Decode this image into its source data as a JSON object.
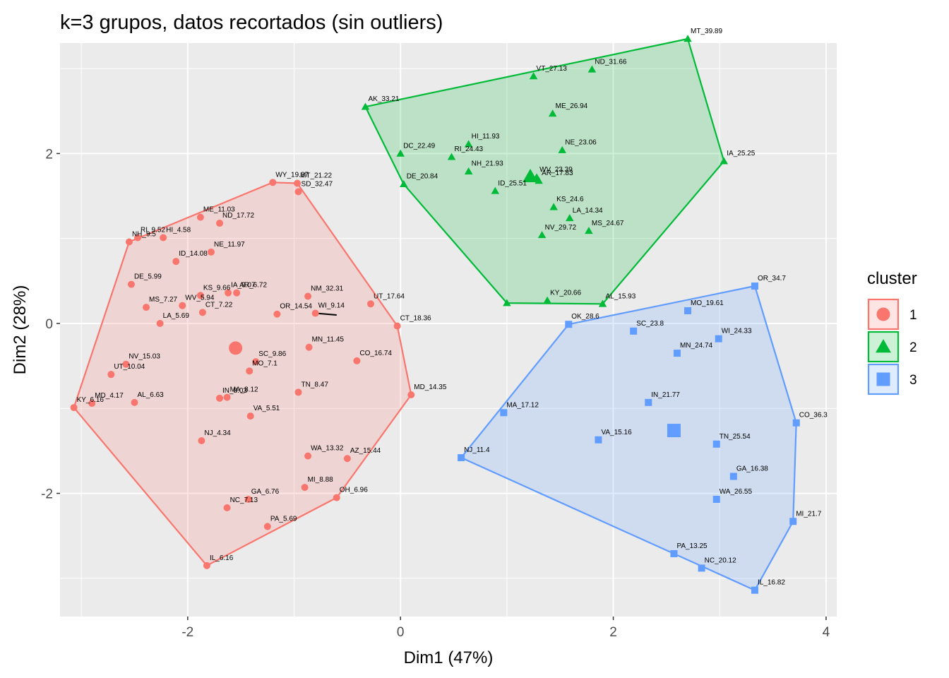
{
  "chart_data": {
    "type": "scatter",
    "title": "k=3 grupos, datos recortados (sin outliers)",
    "xlabel": "Dim1 (47%)",
    "ylabel": "Dim2 (28%)",
    "xlim": [
      -3.2,
      4.1
    ],
    "ylim": [
      -3.45,
      3.3
    ],
    "x_ticks": [
      -2,
      0,
      2,
      4
    ],
    "y_ticks": [
      -2,
      0,
      2
    ],
    "x_tick_labels": [
      "-2",
      "0",
      "2",
      "4"
    ],
    "y_tick_labels": [
      "-2",
      "0",
      "2"
    ],
    "grid": true,
    "legend_placement": "right",
    "legend": {
      "title": "cluster",
      "entries": [
        {
          "label": "1",
          "shape": "circle",
          "color": "#F8766D"
        },
        {
          "label": "2",
          "shape": "triangle",
          "color": "#00BA38"
        },
        {
          "label": "3",
          "shape": "square",
          "color": "#619CFF"
        }
      ]
    },
    "hulls": {
      "1": [
        [
          -3.07,
          -0.99
        ],
        [
          -2.55,
          0.96
        ],
        [
          -1.2,
          1.66
        ],
        [
          -0.97,
          1.65
        ],
        [
          -0.03,
          -0.03
        ],
        [
          0.1,
          -0.84
        ],
        [
          -0.6,
          -2.05
        ],
        [
          -1.82,
          -2.85
        ]
      ],
      "2": [
        [
          -0.33,
          2.55
        ],
        [
          2.7,
          3.35
        ],
        [
          3.04,
          1.91
        ],
        [
          1.9,
          0.23
        ],
        [
          1.0,
          0.24
        ],
        [
          0.03,
          1.64
        ]
      ],
      "3": [
        [
          0.57,
          -1.58
        ],
        [
          1.58,
          -0.01
        ],
        [
          3.33,
          0.44
        ],
        [
          3.72,
          -1.17
        ],
        [
          3.69,
          -2.33
        ],
        [
          3.33,
          -3.14
        ],
        [
          2.57,
          -2.71
        ]
      ]
    },
    "series": [
      {
        "name": "1",
        "color": "#F8766D",
        "points": [
          {
            "label": "WY_19.37",
            "x": -1.2,
            "y": 1.66
          },
          {
            "label": "MT_21.22",
            "x": -0.97,
            "y": 1.65
          },
          {
            "label": "SD_32.47",
            "x": -0.96,
            "y": 1.55
          },
          {
            "label": "ME_11.03",
            "x": -1.88,
            "y": 1.25
          },
          {
            "label": "ND_17.72",
            "x": -1.7,
            "y": 1.18
          },
          {
            "label": "RI_9.52",
            "x": -2.47,
            "y": 1.01
          },
          {
            "label": "NH_9.5",
            "x": -2.55,
            "y": 0.96
          },
          {
            "label": "HI_4.58",
            "x": -2.23,
            "y": 1.01
          },
          {
            "label": "ID_14.08",
            "x": -2.11,
            "y": 0.73
          },
          {
            "label": "NE_11.97",
            "x": -1.78,
            "y": 0.84
          },
          {
            "label": "DE_5.99",
            "x": -2.53,
            "y": 0.46
          },
          {
            "label": "KS_9.66",
            "x": -1.88,
            "y": 0.33
          },
          {
            "label": "AR_6.72",
            "x": -1.54,
            "y": 0.36
          },
          {
            "label": "IA_9.07",
            "x": -1.62,
            "y": 0.36
          },
          {
            "label": "MS_7.27",
            "x": -2.39,
            "y": 0.19
          },
          {
            "label": "WV_5.94",
            "x": -2.05,
            "y": 0.21
          },
          {
            "label": "CT_7.22",
            "x": -1.86,
            "y": 0.13
          },
          {
            "label": "LA_5.69",
            "x": -2.26,
            "y": 0.0
          },
          {
            "label": "NM_32.31",
            "x": -0.87,
            "y": 0.32
          },
          {
            "label": "UT_17.64",
            "x": -0.28,
            "y": 0.23
          },
          {
            "label": "OR_14.54",
            "x": -1.16,
            "y": 0.11
          },
          {
            "label": "WI_9.14",
            "x": -0.8,
            "y": 0.12
          },
          {
            "label": "CT_18.36",
            "x": -0.03,
            "y": -0.03
          },
          {
            "label": "MN_11.45",
            "x": -0.86,
            "y": -0.28
          },
          {
            "label": "SC_9.86",
            "x": -1.36,
            "y": -0.45
          },
          {
            "label": "CO_16.74",
            "x": -0.41,
            "y": -0.44
          },
          {
            "label": "UT_10.04",
            "x": -2.72,
            "y": -0.6
          },
          {
            "label": "NV_15.03",
            "x": -2.58,
            "y": -0.48
          },
          {
            "label": "MO_7.1",
            "x": -1.42,
            "y": -0.56
          },
          {
            "label": "MD_4.17",
            "x": -2.9,
            "y": -0.94
          },
          {
            "label": "KY_6.16",
            "x": -3.07,
            "y": -0.99
          },
          {
            "label": "AL_6.63",
            "x": -2.5,
            "y": -0.93
          },
          {
            "label": "MA_8.12",
            "x": -1.63,
            "y": -0.87
          },
          {
            "label": "IN_8.03",
            "x": -1.7,
            "y": -0.88
          },
          {
            "label": "TN_8.47",
            "x": -0.96,
            "y": -0.81
          },
          {
            "label": "MD_14.35",
            "x": 0.1,
            "y": -0.84
          },
          {
            "label": "VA_5.51",
            "x": -1.41,
            "y": -1.09
          },
          {
            "label": "NJ_4.34",
            "x": -1.87,
            "y": -1.38
          },
          {
            "label": "WA_13.32",
            "x": -0.87,
            "y": -1.56
          },
          {
            "label": "AZ_15.44",
            "x": -0.5,
            "y": -1.59
          },
          {
            "label": "MI_8.88",
            "x": -0.9,
            "y": -1.93
          },
          {
            "label": "GA_6.76",
            "x": -1.43,
            "y": -2.07
          },
          {
            "label": "OH_6.96",
            "x": -0.6,
            "y": -2.05
          },
          {
            "label": "NC_7.13",
            "x": -1.63,
            "y": -2.17
          },
          {
            "label": "PA_5.69",
            "x": -1.25,
            "y": -2.39
          },
          {
            "label": "IL_6.16",
            "x": -1.82,
            "y": -2.85
          }
        ],
        "centroid": {
          "label": "",
          "x": -1.55,
          "y": -0.29
        }
      },
      {
        "name": "2",
        "color": "#00BA38",
        "points": [
          {
            "label": "MT_39.89",
            "x": 2.7,
            "y": 3.35
          },
          {
            "label": "ND_31.66",
            "x": 1.8,
            "y": 2.99
          },
          {
            "label": "VT_27.13",
            "x": 1.25,
            "y": 2.91
          },
          {
            "label": "AK_33.21",
            "x": -0.33,
            "y": 2.55
          },
          {
            "label": "ME_26.94",
            "x": 1.43,
            "y": 2.47
          },
          {
            "label": "HI_11.93",
            "x": 0.64,
            "y": 2.11
          },
          {
            "label": "DC_22.49",
            "x": 0.0,
            "y": 2.0
          },
          {
            "label": "NE_23.06",
            "x": 1.52,
            "y": 2.04
          },
          {
            "label": "RI_24.43",
            "x": 0.48,
            "y": 1.96
          },
          {
            "label": "NH_21.93",
            "x": 0.64,
            "y": 1.79
          },
          {
            "label": "WV_23.39",
            "x": 1.28,
            "y": 1.72
          },
          {
            "label": "AR_17.83",
            "x": 1.3,
            "y": 1.68
          },
          {
            "label": "IA_25.25",
            "x": 3.04,
            "y": 1.91
          },
          {
            "label": "DE_20.84",
            "x": 0.03,
            "y": 1.64
          },
          {
            "label": "ID_25.51",
            "x": 0.89,
            "y": 1.56
          },
          {
            "label": "KS_24.6",
            "x": 1.44,
            "y": 1.37
          },
          {
            "label": "LA_14.34",
            "x": 1.59,
            "y": 1.24
          },
          {
            "label": "MS_24.67",
            "x": 1.77,
            "y": 1.09
          },
          {
            "label": "NV_29.72",
            "x": 1.33,
            "y": 1.04
          },
          {
            "label": "KY_20.66",
            "x": 1.38,
            "y": 0.27
          },
          {
            "label": "AL_15.93",
            "x": 1.9,
            "y": 0.23
          },
          {
            "label": "",
            "x": 1.0,
            "y": 0.24
          }
        ],
        "centroid": {
          "label": "",
          "x": 1.22,
          "y": 1.73
        }
      },
      {
        "name": "3",
        "color": "#619CFF",
        "points": [
          {
            "label": "OR_34.7",
            "x": 3.33,
            "y": 0.44
          },
          {
            "label": "MO_19.61",
            "x": 2.7,
            "y": 0.15
          },
          {
            "label": "OK_28.6",
            "x": 1.58,
            "y": -0.01
          },
          {
            "label": "SC_23.8",
            "x": 2.19,
            "y": -0.09
          },
          {
            "label": "WI_24.33",
            "x": 2.99,
            "y": -0.18
          },
          {
            "label": "MN_24.74",
            "x": 2.6,
            "y": -0.35
          },
          {
            "label": "IN_21.77",
            "x": 2.33,
            "y": -0.93
          },
          {
            "label": "MA_17.12",
            "x": 0.97,
            "y": -1.05
          },
          {
            "label": "CO_36.3",
            "x": 3.72,
            "y": -1.17
          },
          {
            "label": "VA_15.16",
            "x": 1.86,
            "y": -1.37
          },
          {
            "label": "TN_25.54",
            "x": 2.97,
            "y": -1.42
          },
          {
            "label": "NJ_11.4",
            "x": 0.57,
            "y": -1.58
          },
          {
            "label": "GA_16.38",
            "x": 3.13,
            "y": -1.8
          },
          {
            "label": "WA_26.55",
            "x": 2.97,
            "y": -2.07
          },
          {
            "label": "MI_21.7",
            "x": 3.69,
            "y": -2.33
          },
          {
            "label": "PA_13.25",
            "x": 2.57,
            "y": -2.71
          },
          {
            "label": "NC_20.12",
            "x": 2.83,
            "y": -2.88
          },
          {
            "label": "IL_16.82",
            "x": 3.33,
            "y": -3.14
          }
        ],
        "centroid": {
          "label": "",
          "x": 2.57,
          "y": -1.26
        }
      }
    ],
    "connector": {
      "from": {
        "x": -0.8,
        "y": 0.12
      },
      "to": {
        "x": -0.6,
        "y": 0.1
      }
    }
  }
}
